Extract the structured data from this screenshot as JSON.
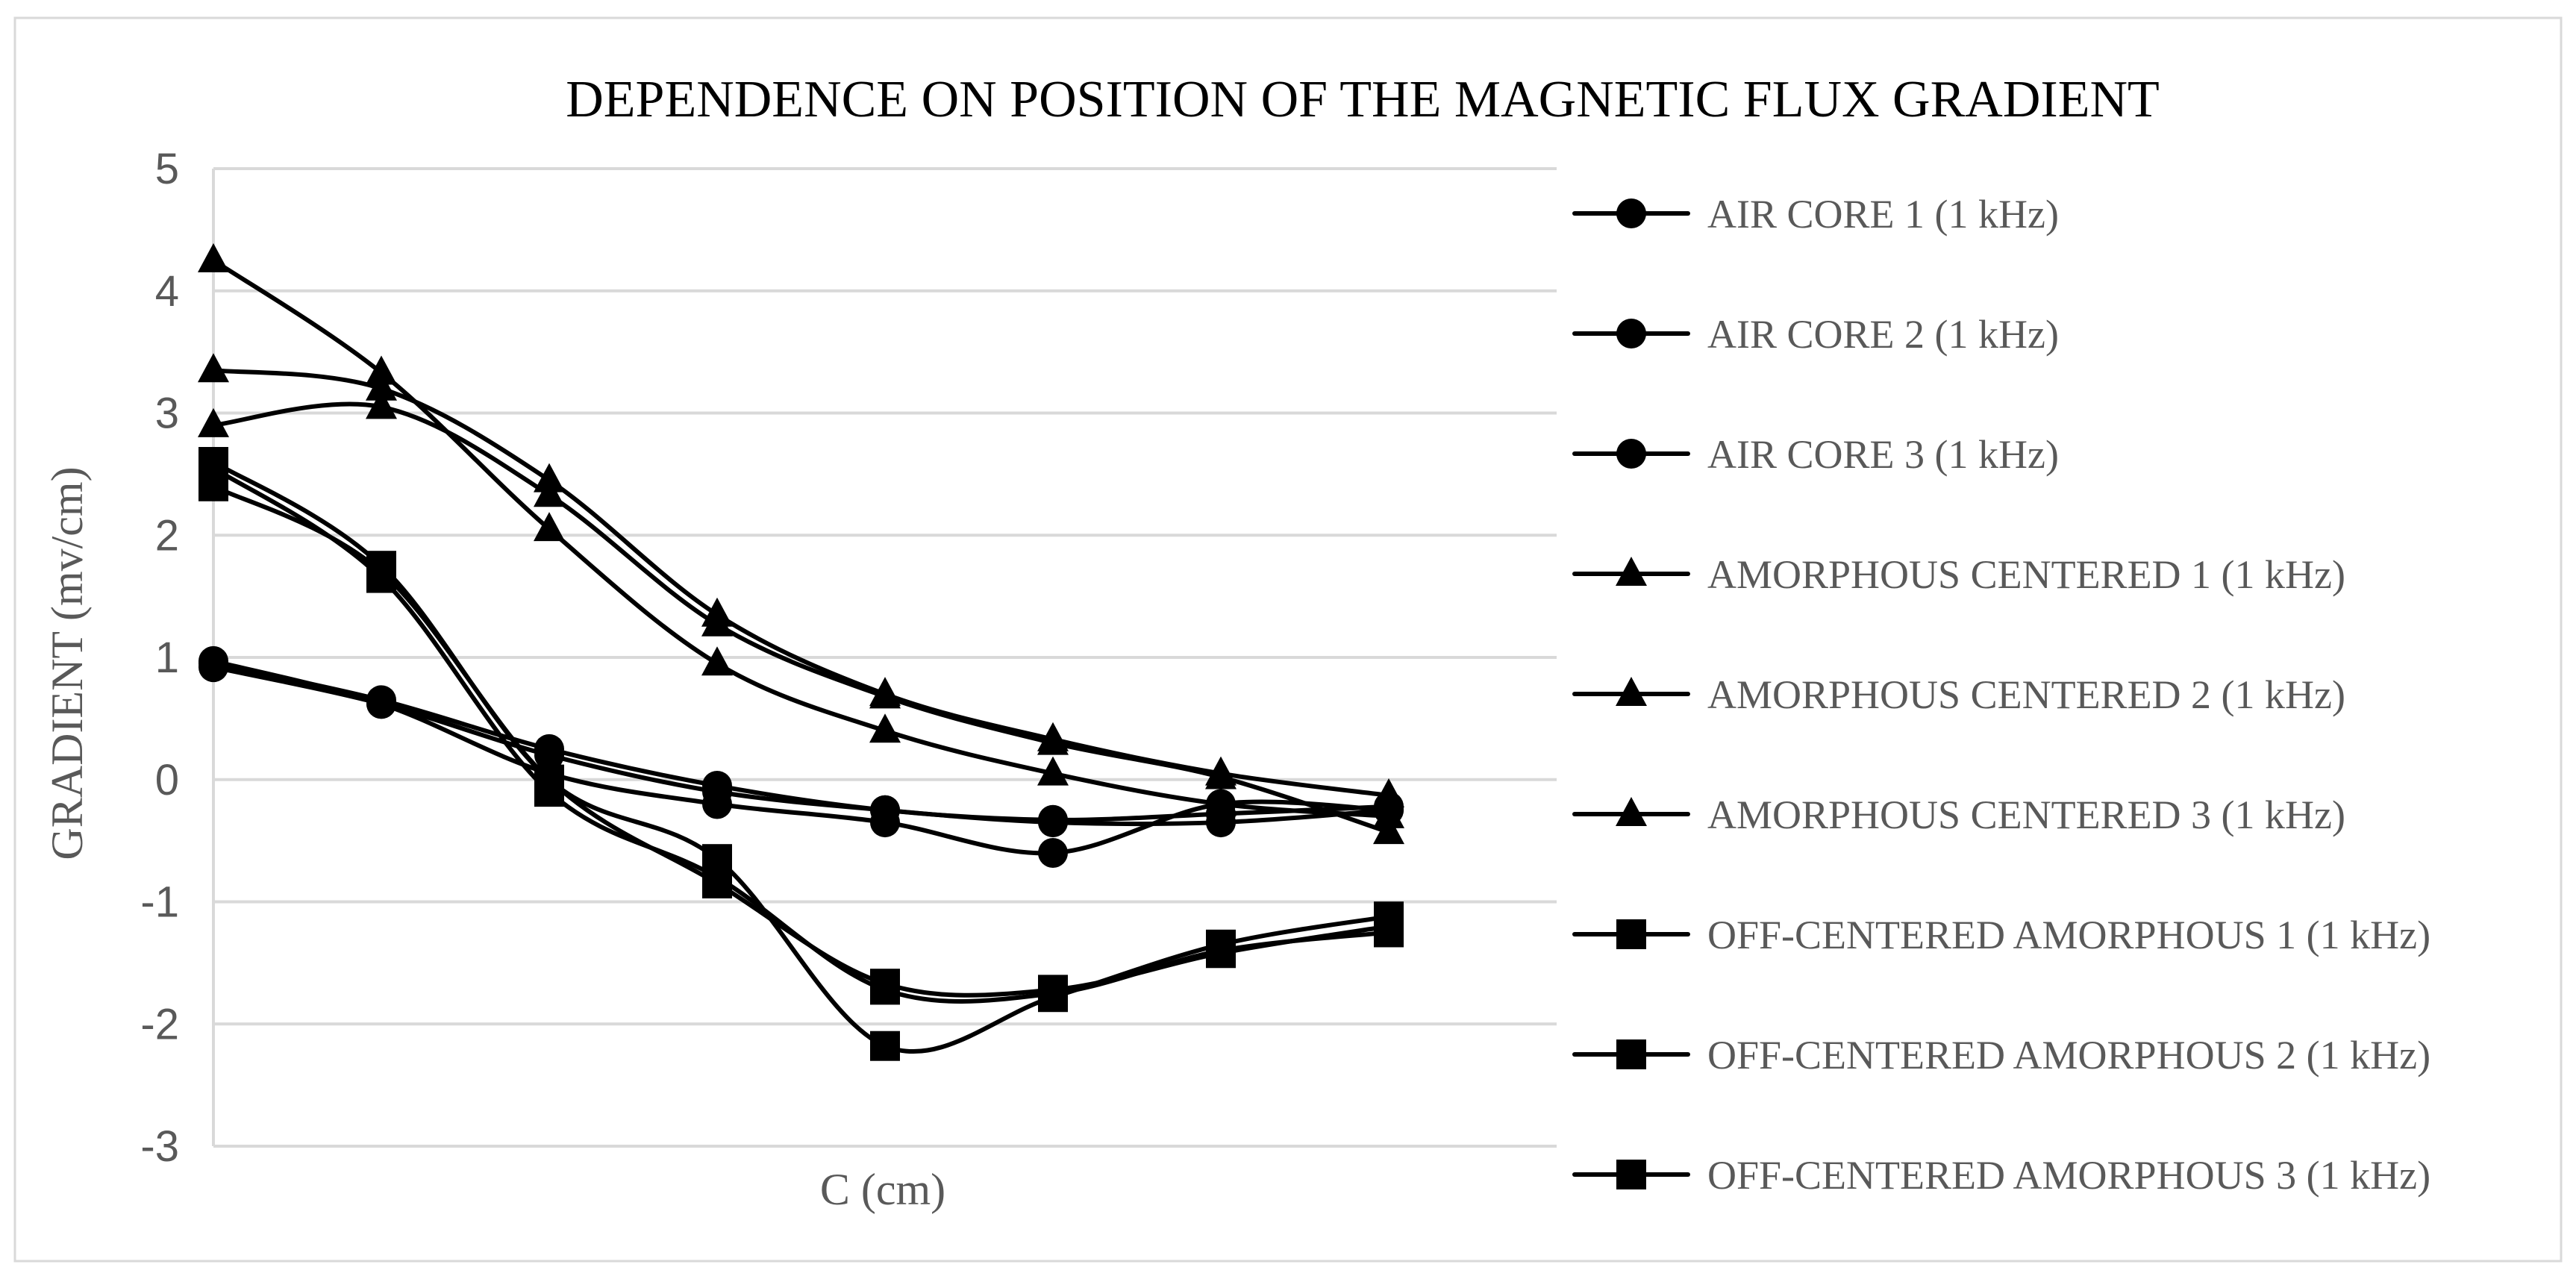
{
  "chart_data": {
    "type": "line",
    "title": "DEPENDENCE ON POSITION OF THE MAGNETIC FLUX GRADIENT",
    "xlabel": "C (cm)",
    "ylabel": "GRADIENT (mv/cm)",
    "ylim": [
      -3,
      5
    ],
    "yticks": [
      5,
      4,
      3,
      2,
      1,
      0,
      -1,
      -2,
      -3
    ],
    "x_points": 8,
    "grid": true,
    "legend_position": "right",
    "smooth": true,
    "series": [
      {
        "name": "AIR CORE 1 (1 kHz)",
        "marker": "circle",
        "values": [
          0.95,
          0.65,
          0.25,
          -0.05,
          -0.25,
          -0.33,
          -0.28,
          -0.22
        ]
      },
      {
        "name": "AIR CORE 2 (1 kHz)",
        "marker": "circle",
        "values": [
          0.92,
          0.62,
          0.2,
          -0.1,
          -0.25,
          -0.35,
          -0.35,
          -0.25
        ]
      },
      {
        "name": "AIR CORE 3 (1 kHz)",
        "marker": "circle",
        "values": [
          0.97,
          0.62,
          0.05,
          -0.2,
          -0.35,
          -0.6,
          -0.2,
          -0.25
        ]
      },
      {
        "name": "AMORPHOUS CENTERED 1 (1 kHz)",
        "marker": "triangle",
        "values": [
          4.25,
          3.33,
          2.05,
          0.95,
          0.4,
          0.05,
          -0.2,
          -0.3
        ]
      },
      {
        "name": "AMORPHOUS CENTERED 2 (1 kHz)",
        "marker": "triangle",
        "values": [
          3.35,
          3.2,
          2.45,
          1.35,
          0.7,
          0.33,
          0.05,
          -0.13
        ]
      },
      {
        "name": "AMORPHOUS CENTERED 3 (1 kHz)",
        "marker": "triangle",
        "values": [
          2.9,
          3.05,
          2.33,
          1.27,
          0.68,
          0.3,
          0.02,
          -0.43
        ]
      },
      {
        "name": "OFF-CENTERED AMORPHOUS 1 (1 kHz)",
        "marker": "square",
        "values": [
          2.55,
          1.65,
          -0.1,
          -0.8,
          -1.72,
          -1.75,
          -1.4,
          -1.25
        ]
      },
      {
        "name": "OFF-CENTERED AMORPHOUS 2 (1 kHz)",
        "marker": "square",
        "values": [
          2.6,
          1.75,
          0.0,
          -0.65,
          -2.18,
          -1.78,
          -1.35,
          -1.12
        ]
      },
      {
        "name": "OFF-CENTERED AMORPHOUS 3 (1 kHz)",
        "marker": "square",
        "values": [
          2.4,
          1.7,
          0.0,
          -0.85,
          -1.67,
          -1.72,
          -1.42,
          -1.2
        ]
      }
    ]
  }
}
